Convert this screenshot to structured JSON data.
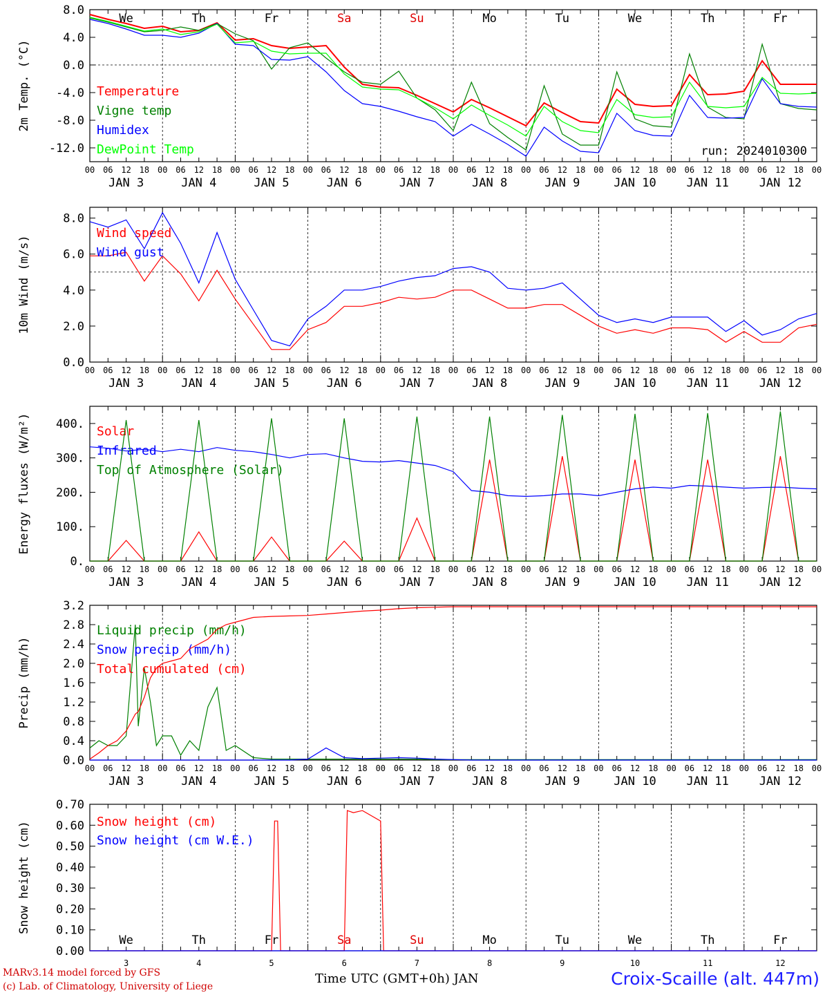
{
  "header": {
    "run": "run: 2024010300"
  },
  "time_axis": {
    "hour_ticks": [
      "00",
      "06",
      "12",
      "18"
    ],
    "day_labels": [
      "JAN  3",
      "JAN  4",
      "JAN  5",
      "JAN  6",
      "JAN  7",
      "JAN  8",
      "JAN  9",
      "JAN 10",
      "JAN 11",
      "JAN 12"
    ],
    "weekdays": [
      "We",
      "Th",
      "Fr",
      "Sa",
      "Su",
      "Mo",
      "Tu",
      "We",
      "Th",
      "Fr"
    ],
    "weekend_color": "#e00000",
    "day_numbers": [
      "3",
      "4",
      "5",
      "6",
      "7",
      "8",
      "9",
      "10",
      "11",
      "12"
    ]
  },
  "footer": {
    "credit_line1": "MARv3.14 model forced by GFS",
    "credit_line2": "(c) Lab. of Climatology, University of Liege",
    "x_title": "Time UTC (GMT+0h) JAN",
    "station": "Croix-Scaille (alt. 447m)"
  },
  "chart_data": [
    {
      "type": "line",
      "ylabel": "2m Temp. (°C)",
      "ylim": [
        -14,
        8
      ],
      "yticks": [
        8.0,
        4.0,
        0.0,
        -4.0,
        -8.0,
        -12.0
      ],
      "ytick_labels": [
        "8.0",
        "4.0",
        "0.0",
        "-4.0",
        "-8.0",
        "-12.0"
      ],
      "reference_line": 0,
      "x_hours": [
        0,
        6,
        12,
        18,
        24,
        30,
        36,
        42,
        48,
        54,
        60,
        66,
        72,
        78,
        84,
        90,
        96,
        102,
        108,
        114,
        120,
        126,
        132,
        138,
        144,
        150,
        156,
        162,
        168,
        174,
        180,
        186,
        192,
        198,
        204,
        210,
        216,
        222,
        228,
        234,
        240
      ],
      "series": [
        {
          "name": "Temperature",
          "color": "#ff0000",
          "values": [
            7.3,
            6.6,
            6.0,
            5.3,
            5.6,
            4.8,
            5.0,
            6.1,
            3.6,
            3.8,
            2.8,
            2.4,
            2.6,
            2.8,
            -0.3,
            -2.8,
            -3.2,
            -3.3,
            -4.4,
            -5.6,
            -6.8,
            -5.0,
            -6.2,
            -7.5,
            -8.8,
            -5.5,
            -6.9,
            -8.2,
            -8.4,
            -3.5,
            -5.7,
            -6.0,
            -5.9,
            -1.4,
            -4.3,
            -4.2,
            -3.8,
            0.6,
            -2.8,
            -2.8,
            -2.8
          ]
        },
        {
          "name": "Vigne temp",
          "color": "#008000",
          "values": [
            6.8,
            6.2,
            5.5,
            4.8,
            5.0,
            5.5,
            5.0,
            6.0,
            4.5,
            3.5,
            -0.6,
            2.5,
            3.2,
            1.0,
            -1.0,
            -2.5,
            -2.8,
            -0.9,
            -4.8,
            -6.5,
            -9.5,
            -2.5,
            -8.5,
            -10.5,
            -12.3,
            -3.0,
            -10.0,
            -11.6,
            -11.6,
            -1.0,
            -7.8,
            -8.8,
            -9.0,
            1.6,
            -6.1,
            -7.6,
            -7.8,
            3.0,
            -5.6,
            -6.3,
            -6.5
          ]
        },
        {
          "name": "Humidex",
          "color": "#0000ff",
          "values": [
            6.6,
            6.0,
            5.2,
            4.3,
            4.3,
            4.0,
            4.6,
            6.0,
            3.0,
            2.8,
            0.8,
            0.7,
            1.2,
            -1.0,
            -3.7,
            -5.6,
            -6.0,
            -6.7,
            -7.5,
            -8.2,
            -10.3,
            -8.6,
            -10.0,
            -11.5,
            -13.2,
            -9.0,
            -11.0,
            -12.5,
            -12.7,
            -7.0,
            -9.5,
            -10.2,
            -10.3,
            -4.4,
            -7.6,
            -7.7,
            -7.6,
            -2.0,
            -5.6,
            -6.0,
            -6.1
          ]
        },
        {
          "name": "DewPoint Temp",
          "color": "#00ff00",
          "values": [
            6.9,
            6.3,
            5.6,
            4.9,
            5.2,
            4.4,
            4.8,
            5.9,
            3.2,
            3.4,
            2.0,
            1.6,
            1.7,
            1.7,
            -1.3,
            -3.2,
            -3.5,
            -3.6,
            -4.8,
            -6.2,
            -7.8,
            -5.8,
            -7.3,
            -8.7,
            -10.3,
            -6.0,
            -8.2,
            -9.5,
            -9.8,
            -5.0,
            -7.2,
            -7.6,
            -7.5,
            -2.5,
            -6.0,
            -6.2,
            -6.0,
            -1.8,
            -4.1,
            -4.2,
            -4.1
          ]
        }
      ]
    },
    {
      "type": "line",
      "ylabel": "10m Wind (m/s)",
      "ylim": [
        0,
        8.6
      ],
      "yticks": [
        8.0,
        6.0,
        4.0,
        2.0,
        0.0
      ],
      "ytick_labels": [
        "8.0",
        "6.0",
        "4.0",
        "2.0",
        "0.0"
      ],
      "reference_line": 5,
      "x_hours": [
        0,
        6,
        12,
        18,
        24,
        30,
        36,
        42,
        48,
        54,
        60,
        66,
        72,
        78,
        84,
        90,
        96,
        102,
        108,
        114,
        120,
        126,
        132,
        138,
        144,
        150,
        156,
        162,
        168,
        174,
        180,
        186,
        192,
        198,
        204,
        210,
        216,
        222,
        228,
        234,
        240
      ],
      "series": [
        {
          "name": "Wind speed",
          "color": "#ff0000",
          "values": [
            5.9,
            5.9,
            6.1,
            4.5,
            5.9,
            4.9,
            3.4,
            5.1,
            3.5,
            2.1,
            0.7,
            0.7,
            1.8,
            2.2,
            3.1,
            3.1,
            3.3,
            3.6,
            3.5,
            3.6,
            4.0,
            4.0,
            3.5,
            3.0,
            3.0,
            3.2,
            3.2,
            2.6,
            2.0,
            1.6,
            1.8,
            1.6,
            1.9,
            1.9,
            1.8,
            1.1,
            1.7,
            1.1,
            1.1,
            1.9,
            2.1
          ]
        },
        {
          "name": "Wind gust",
          "color": "#0000ff",
          "values": [
            7.8,
            7.5,
            7.9,
            6.3,
            8.3,
            6.6,
            4.4,
            7.2,
            4.6,
            2.9,
            1.2,
            0.9,
            2.4,
            3.1,
            4.0,
            4.0,
            4.2,
            4.5,
            4.7,
            4.8,
            5.2,
            5.3,
            5.0,
            4.1,
            4.0,
            4.1,
            4.4,
            3.5,
            2.6,
            2.2,
            2.4,
            2.2,
            2.5,
            2.5,
            2.5,
            1.7,
            2.3,
            1.5,
            1.8,
            2.4,
            2.7
          ]
        }
      ]
    },
    {
      "type": "line",
      "ylabel": "Energy fluxes (W/m²)",
      "ylim": [
        0,
        450
      ],
      "yticks": [
        400,
        300,
        200,
        100,
        0
      ],
      "ytick_labels": [
        "400.",
        "300.",
        "200.",
        "100.",
        "0."
      ],
      "x_hours": [
        0,
        6,
        12,
        18,
        24,
        30,
        36,
        42,
        48,
        54,
        60,
        66,
        72,
        78,
        84,
        90,
        96,
        102,
        108,
        114,
        120,
        126,
        132,
        138,
        144,
        150,
        156,
        162,
        168,
        174,
        180,
        186,
        192,
        198,
        204,
        210,
        216,
        222,
        228,
        234,
        240
      ],
      "series": [
        {
          "name": "Solar",
          "color": "#ff0000",
          "values": [
            0,
            0,
            60,
            0,
            0,
            0,
            85,
            0,
            0,
            0,
            70,
            0,
            0,
            0,
            58,
            0,
            0,
            0,
            125,
            0,
            0,
            0,
            295,
            0,
            0,
            0,
            305,
            0,
            0,
            0,
            295,
            0,
            0,
            0,
            295,
            0,
            0,
            0,
            305,
            0,
            0
          ]
        },
        {
          "name": "Infrared",
          "color": "#0000ff",
          "values": [
            332,
            328,
            320,
            325,
            318,
            325,
            318,
            330,
            322,
            318,
            310,
            300,
            310,
            312,
            300,
            290,
            288,
            292,
            285,
            278,
            260,
            205,
            200,
            190,
            188,
            190,
            195,
            195,
            190,
            200,
            210,
            215,
            212,
            220,
            218,
            215,
            212,
            214,
            215,
            212,
            210
          ]
        },
        {
          "name": "Top of Atmosphere (Solar)",
          "color": "#008000",
          "values": [
            0,
            0,
            410,
            0,
            0,
            0,
            410,
            0,
            0,
            0,
            415,
            0,
            0,
            0,
            415,
            0,
            0,
            0,
            420,
            0,
            0,
            0,
            420,
            0,
            0,
            0,
            425,
            0,
            0,
            0,
            428,
            0,
            0,
            0,
            430,
            0,
            0,
            0,
            435,
            0,
            0
          ]
        }
      ]
    },
    {
      "type": "line",
      "ylabel": "Precip (mm/h)",
      "ylim": [
        0,
        3.2
      ],
      "yticks": [
        3.2,
        2.8,
        2.4,
        2.0,
        1.6,
        1.2,
        0.8,
        0.4,
        0.0
      ],
      "ytick_labels": [
        "3.2",
        "2.8",
        "2.4",
        "2.0",
        "1.6",
        "1.2",
        "0.8",
        "0.4",
        "0.0"
      ],
      "x_hours": [
        0,
        3,
        6,
        9,
        12,
        15,
        16,
        18,
        20,
        22,
        24,
        27,
        30,
        33,
        36,
        39,
        42,
        45,
        48,
        54,
        60,
        66,
        72,
        78,
        84,
        90,
        96,
        102,
        108,
        114,
        120,
        126,
        132,
        138,
        144,
        150,
        156,
        162,
        168,
        174,
        180,
        186,
        192,
        198,
        204,
        210,
        216,
        222,
        228,
        234,
        240
      ],
      "series": [
        {
          "name": "Liquid precip (mm/h)",
          "color": "#008000",
          "values": [
            0.25,
            0.4,
            0.3,
            0.3,
            0.5,
            2.8,
            0.7,
            1.9,
            1.2,
            0.3,
            0.5,
            0.5,
            0.1,
            0.4,
            0.2,
            1.1,
            1.5,
            0.2,
            0.3,
            0.05,
            0.02,
            0.02,
            0.02,
            0.02,
            0.02,
            0.02,
            0.02,
            0.02,
            0.02,
            0.01,
            0.01,
            0.01,
            0.01,
            0.01,
            0.01,
            0.01,
            0.01,
            0.01,
            0.01,
            0.01,
            0.01,
            0.01,
            0.01,
            0.01,
            0.01,
            0.01,
            0.01,
            0.01,
            0.01,
            0.01,
            0.01
          ]
        },
        {
          "name": "Snow precip (mm/h)",
          "color": "#0000ff",
          "values": [
            0,
            0,
            0,
            0,
            0,
            0,
            0,
            0,
            0,
            0,
            0,
            0,
            0,
            0,
            0,
            0,
            0,
            0,
            0,
            0,
            0,
            0,
            0.02,
            0.25,
            0.05,
            0.03,
            0.04,
            0.05,
            0.04,
            0.02,
            0.01,
            0,
            0,
            0,
            0,
            0,
            0,
            0,
            0,
            0,
            0,
            0,
            0,
            0,
            0,
            0,
            0,
            0,
            0,
            0,
            0
          ]
        },
        {
          "name": "Total cumulated (cm)",
          "color": "#ff0000",
          "values": [
            0.02,
            0.15,
            0.3,
            0.4,
            0.6,
            0.95,
            1.0,
            1.3,
            1.7,
            1.9,
            2.0,
            2.05,
            2.1,
            2.3,
            2.4,
            2.5,
            2.7,
            2.8,
            2.85,
            2.95,
            2.97,
            2.98,
            2.99,
            3.02,
            3.05,
            3.08,
            3.1,
            3.13,
            3.15,
            3.16,
            3.17,
            3.17,
            3.17,
            3.17,
            3.17,
            3.17,
            3.17,
            3.17,
            3.17,
            3.17,
            3.17,
            3.17,
            3.17,
            3.17,
            3.17,
            3.17,
            3.17,
            3.17,
            3.17,
            3.17,
            3.17
          ]
        }
      ]
    },
    {
      "type": "line",
      "ylabel": "Snow height (cm)",
      "ylim": [
        0,
        0.7
      ],
      "yticks": [
        0.7,
        0.6,
        0.5,
        0.4,
        0.3,
        0.2,
        0.1,
        0.0
      ],
      "ytick_labels": [
        "0.70",
        "0.60",
        "0.50",
        "0.40",
        "0.30",
        "0.20",
        "0.10",
        "0.00"
      ],
      "x_hours": [
        0,
        60,
        61,
        62,
        63,
        84,
        85,
        87,
        90,
        96,
        97,
        240
      ],
      "series": [
        {
          "name": "Snow height (cm)",
          "color": "#ff0000",
          "values": [
            0,
            0,
            0.62,
            0.62,
            0,
            0,
            0.67,
            0.66,
            0.67,
            0.62,
            0,
            0
          ]
        },
        {
          "name": "Snow height (cm W.E.)",
          "color": "#0000ff",
          "values": [
            0,
            0,
            0,
            0,
            0,
            0,
            0,
            0,
            0,
            0,
            0,
            0
          ]
        }
      ]
    }
  ]
}
